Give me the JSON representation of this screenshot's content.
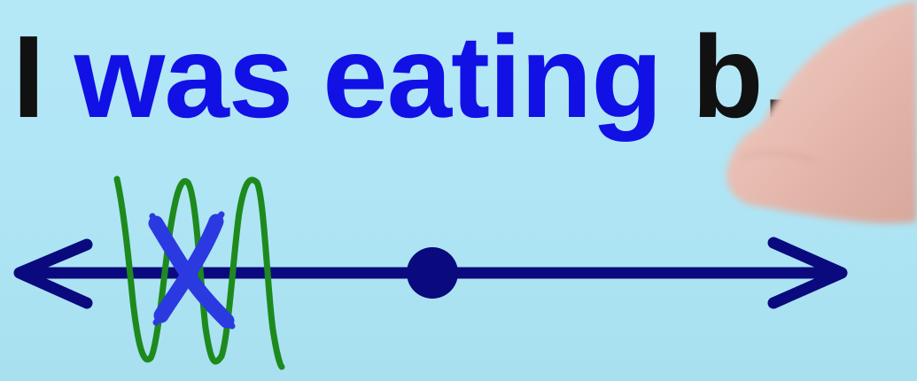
{
  "sentence": {
    "word_subject": "I",
    "word_aux": "was",
    "word_verb": "eating",
    "word_object": "b."
  },
  "colors": {
    "background": "#b1e6f6",
    "subject_text": "#111111",
    "verb_phrase_text": "#1111e6",
    "object_text": "#111111",
    "timeline": "#0a0a7e",
    "past_action_wave": "#1e8a1e",
    "interrupt_mark": "#2a3ae0",
    "present_dot": "#0a0a7e"
  },
  "icons": {
    "left_arrowhead": "left-arrowhead-icon",
    "right_arrowhead": "right-arrowhead-icon",
    "present_dot": "present-point-icon",
    "past_action_wave": "continuous-action-wave-icon",
    "interrupt_mark": "x-mark-icon",
    "hand": "pointing-hand-icon"
  }
}
